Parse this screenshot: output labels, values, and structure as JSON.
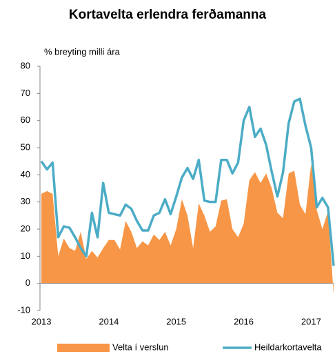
{
  "chart_data": {
    "type": "area_line",
    "title": "Kortavelta erlendra ferðamanna",
    "ylabel": "% breyting milli ára",
    "categories": [
      "2013",
      null,
      null,
      null,
      null,
      null,
      null,
      null,
      null,
      null,
      null,
      null,
      "2014",
      null,
      null,
      null,
      null,
      null,
      null,
      null,
      null,
      null,
      null,
      null,
      "2015",
      null,
      null,
      null,
      null,
      null,
      null,
      null,
      null,
      null,
      null,
      null,
      "2016",
      null,
      null,
      null,
      null,
      null,
      null,
      null,
      null,
      null,
      null,
      null,
      "2017",
      null,
      null,
      null,
      null
    ],
    "series": [
      {
        "name": "Velta í verslun",
        "kind": "area",
        "color": "#f79646",
        "values": [
          33,
          34,
          33,
          10,
          16.5,
          13,
          12,
          19,
          9,
          12,
          9.5,
          13,
          16,
          16,
          12.5,
          23,
          19,
          13,
          15.5,
          14,
          18,
          16,
          19,
          14,
          20,
          31,
          25,
          13,
          29.5,
          25,
          19,
          21,
          30.5,
          31,
          20,
          17,
          22,
          38,
          41,
          37,
          40.5,
          35,
          26,
          24,
          40.5,
          41.5,
          29,
          25.5,
          44,
          27,
          20,
          26.5,
          -4
        ]
      },
      {
        "name": "Heildarkortavelta",
        "kind": "line",
        "color": "#4bacc6",
        "values": [
          45,
          42,
          44.5,
          17,
          21,
          20.5,
          17,
          13,
          10,
          26,
          17,
          37,
          26,
          25.5,
          25,
          29,
          27.5,
          23,
          19.5,
          19.5,
          25,
          26,
          31,
          25.5,
          32,
          39,
          42.5,
          38.5,
          45.5,
          30.5,
          30,
          30,
          45.5,
          45.5,
          40.5,
          44.5,
          60,
          65,
          54,
          57,
          51,
          41,
          32,
          41,
          59,
          67,
          68,
          58,
          50,
          28,
          31.5,
          28,
          6.5
        ]
      }
    ],
    "ylim": [
      -10,
      80
    ],
    "yticks": [
      -10,
      0,
      10,
      20,
      30,
      40,
      50,
      60,
      70,
      80
    ],
    "legend": "bottom"
  }
}
